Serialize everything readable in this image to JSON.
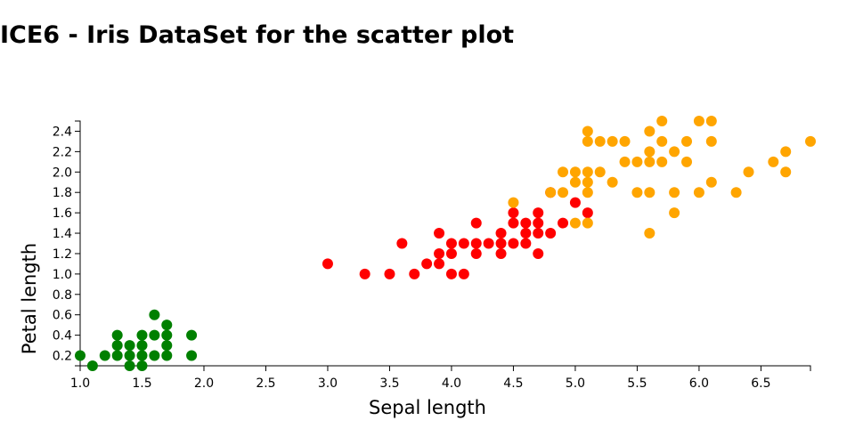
{
  "page": {
    "title": "ICE6 - Iris DataSet for the scatter plot"
  },
  "chart_data": {
    "type": "scatter",
    "title": "",
    "xlabel": "Sepal length",
    "ylabel": "Petal length",
    "xlim": [
      1.0,
      6.9
    ],
    "ylim": [
      0.1,
      2.5
    ],
    "x_ticks": [
      "1.0",
      "1.5",
      "2.0",
      "2.5",
      "3.0",
      "3.5",
      "4.0",
      "4.5",
      "5.0",
      "5.5",
      "6.0",
      "6.5"
    ],
    "y_ticks": [
      "0.2",
      "0.4",
      "0.6",
      "0.8",
      "1.0",
      "1.2",
      "1.4",
      "1.6",
      "1.8",
      "2.0",
      "2.2",
      "2.4"
    ],
    "grid": false,
    "legend": "none",
    "series": [
      {
        "color": "#008000",
        "points": [
          [
            1.0,
            0.2
          ],
          [
            1.1,
            0.1
          ],
          [
            1.2,
            0.2
          ],
          [
            1.3,
            0.2
          ],
          [
            1.3,
            0.3
          ],
          [
            1.3,
            0.4
          ],
          [
            1.4,
            0.1
          ],
          [
            1.4,
            0.2
          ],
          [
            1.4,
            0.3
          ],
          [
            1.5,
            0.1
          ],
          [
            1.5,
            0.2
          ],
          [
            1.5,
            0.3
          ],
          [
            1.5,
            0.4
          ],
          [
            1.6,
            0.2
          ],
          [
            1.6,
            0.4
          ],
          [
            1.6,
            0.6
          ],
          [
            1.7,
            0.2
          ],
          [
            1.7,
            0.3
          ],
          [
            1.7,
            0.4
          ],
          [
            1.7,
            0.5
          ],
          [
            1.9,
            0.2
          ],
          [
            1.9,
            0.4
          ]
        ]
      },
      {
        "color": "#ff0000",
        "points": [
          [
            3.0,
            1.1
          ],
          [
            3.3,
            1.0
          ],
          [
            3.5,
            1.0
          ],
          [
            3.6,
            1.3
          ],
          [
            3.7,
            1.0
          ],
          [
            3.8,
            1.1
          ],
          [
            3.9,
            1.1
          ],
          [
            3.9,
            1.2
          ],
          [
            3.9,
            1.4
          ],
          [
            4.0,
            1.0
          ],
          [
            4.0,
            1.2
          ],
          [
            4.0,
            1.3
          ],
          [
            4.1,
            1.0
          ],
          [
            4.1,
            1.3
          ],
          [
            4.2,
            1.2
          ],
          [
            4.2,
            1.3
          ],
          [
            4.2,
            1.5
          ],
          [
            4.3,
            1.3
          ],
          [
            4.4,
            1.2
          ],
          [
            4.4,
            1.3
          ],
          [
            4.4,
            1.4
          ],
          [
            4.5,
            1.3
          ],
          [
            4.5,
            1.5
          ],
          [
            4.5,
            1.6
          ],
          [
            4.6,
            1.3
          ],
          [
            4.6,
            1.4
          ],
          [
            4.6,
            1.5
          ],
          [
            4.7,
            1.2
          ],
          [
            4.7,
            1.4
          ],
          [
            4.7,
            1.5
          ],
          [
            4.7,
            1.6
          ],
          [
            4.8,
            1.4
          ],
          [
            4.8,
            1.8
          ],
          [
            4.9,
            1.5
          ],
          [
            5.0,
            1.7
          ],
          [
            5.1,
            1.6
          ]
        ]
      },
      {
        "color": "#ffa500",
        "points": [
          [
            4.5,
            1.7
          ],
          [
            4.8,
            1.8
          ],
          [
            4.9,
            1.8
          ],
          [
            4.9,
            2.0
          ],
          [
            5.0,
            1.5
          ],
          [
            5.0,
            1.9
          ],
          [
            5.0,
            2.0
          ],
          [
            5.1,
            1.5
          ],
          [
            5.1,
            1.8
          ],
          [
            5.1,
            1.9
          ],
          [
            5.1,
            2.0
          ],
          [
            5.1,
            2.3
          ],
          [
            5.1,
            2.4
          ],
          [
            5.2,
            2.0
          ],
          [
            5.2,
            2.3
          ],
          [
            5.3,
            1.9
          ],
          [
            5.3,
            2.3
          ],
          [
            5.4,
            2.1
          ],
          [
            5.4,
            2.3
          ],
          [
            5.5,
            1.8
          ],
          [
            5.5,
            2.1
          ],
          [
            5.6,
            1.4
          ],
          [
            5.6,
            1.8
          ],
          [
            5.6,
            2.1
          ],
          [
            5.6,
            2.2
          ],
          [
            5.6,
            2.4
          ],
          [
            5.7,
            2.1
          ],
          [
            5.7,
            2.3
          ],
          [
            5.7,
            2.5
          ],
          [
            5.8,
            1.6
          ],
          [
            5.8,
            1.8
          ],
          [
            5.8,
            2.2
          ],
          [
            5.9,
            2.1
          ],
          [
            5.9,
            2.3
          ],
          [
            6.0,
            1.8
          ],
          [
            6.0,
            2.5
          ],
          [
            6.1,
            1.9
          ],
          [
            6.1,
            2.3
          ],
          [
            6.1,
            2.5
          ],
          [
            6.3,
            1.8
          ],
          [
            6.4,
            2.0
          ],
          [
            6.6,
            2.1
          ],
          [
            6.7,
            2.0
          ],
          [
            6.7,
            2.2
          ],
          [
            6.9,
            2.3
          ]
        ]
      }
    ]
  }
}
